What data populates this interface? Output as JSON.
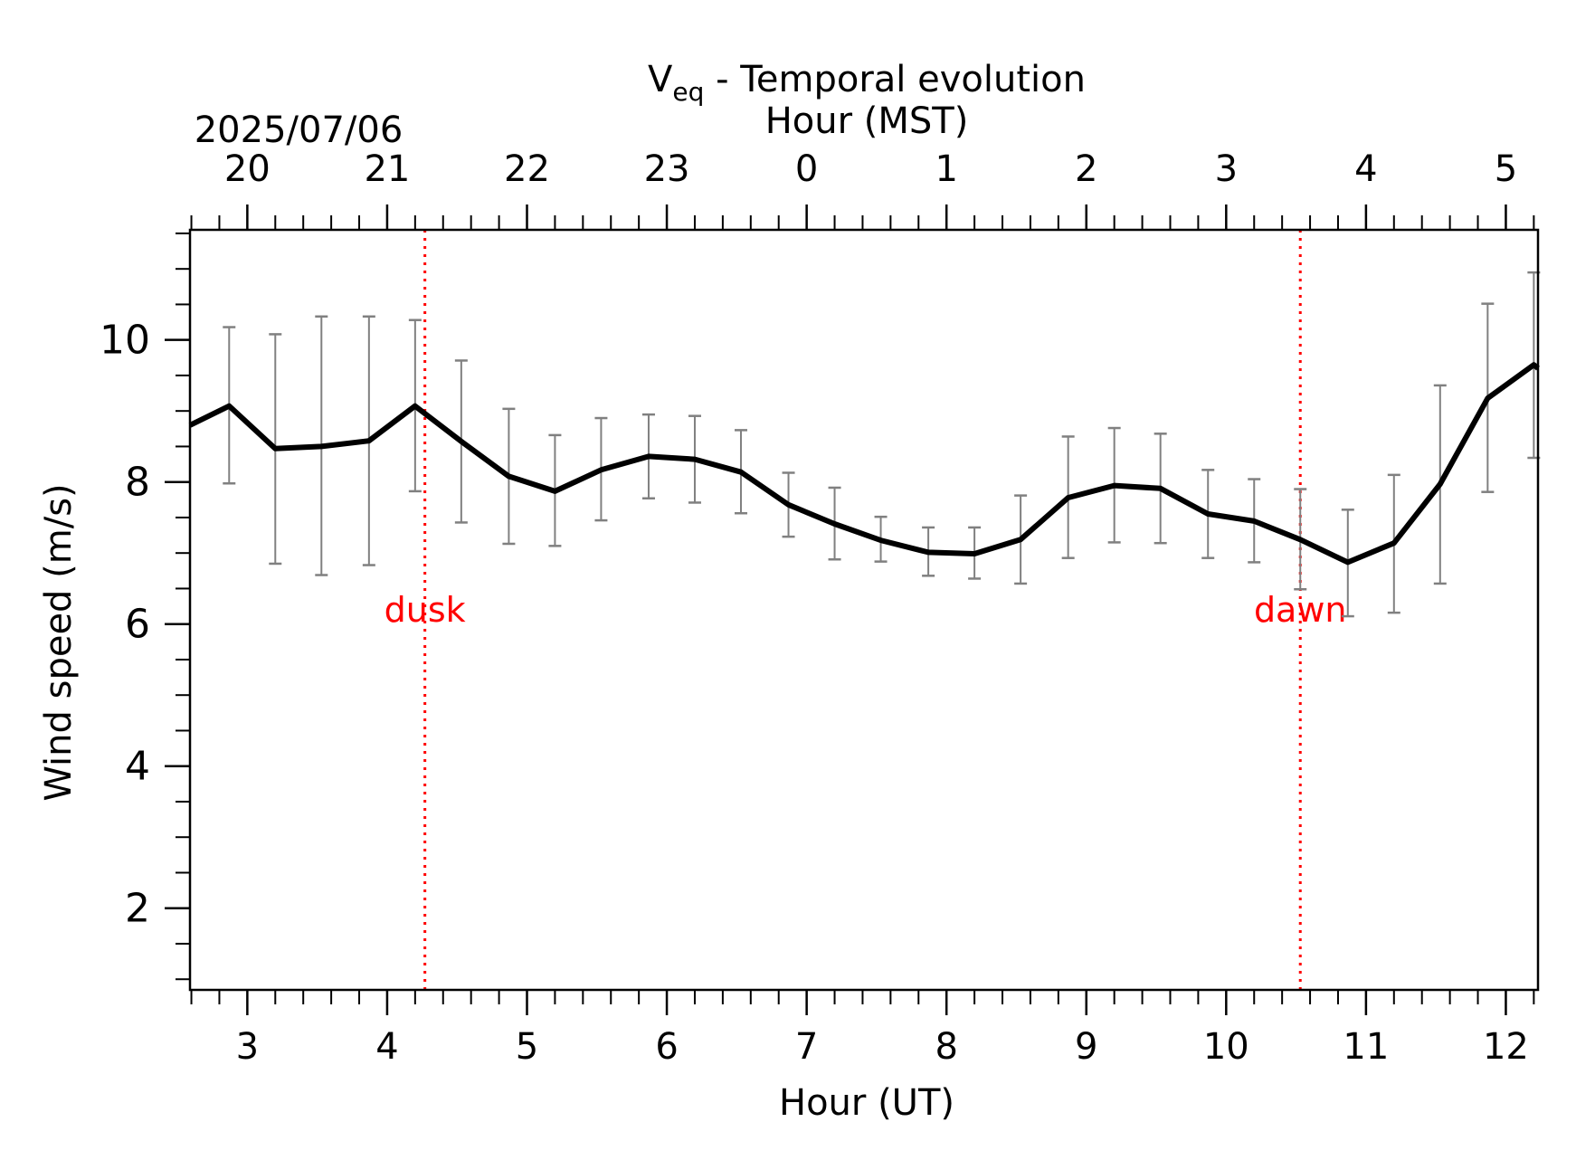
{
  "chart_data": {
    "type": "line",
    "title": "V",
    "title_subscript": "eq",
    "title_suffix": " - Temporal evolution",
    "top_axis": {
      "label": "Hour (MST)",
      "date": "2025/07/06",
      "ticks": [
        {
          "ut": 3,
          "label": "20"
        },
        {
          "ut": 4,
          "label": "21"
        },
        {
          "ut": 5,
          "label": "22"
        },
        {
          "ut": 6,
          "label": "23"
        },
        {
          "ut": 7,
          "label": "0"
        },
        {
          "ut": 8,
          "label": "1"
        },
        {
          "ut": 9,
          "label": "2"
        },
        {
          "ut": 10,
          "label": "3"
        },
        {
          "ut": 11,
          "label": "4"
        },
        {
          "ut": 12,
          "label": "5"
        }
      ]
    },
    "xlabel": "Hour (UT)",
    "ylabel": "Wind speed (m/s)",
    "xlim": [
      2.59,
      12.23
    ],
    "ylim": [
      0.85,
      11.55
    ],
    "x_ticks": [
      3,
      4,
      5,
      6,
      7,
      8,
      9,
      10,
      11,
      12
    ],
    "y_ticks": [
      2,
      4,
      6,
      8,
      10
    ],
    "series": [
      {
        "color": "#000000",
        "error_color": "#808080",
        "points": [
          {
            "x": 2.59,
            "y": 8.8,
            "err": null
          },
          {
            "x": 2.87,
            "y": 9.07,
            "lo": 7.98,
            "hi": 10.18
          },
          {
            "x": 3.2,
            "y": 8.47,
            "lo": 6.85,
            "hi": 10.08
          },
          {
            "x": 3.53,
            "y": 8.5,
            "lo": 6.69,
            "hi": 10.33
          },
          {
            "x": 3.87,
            "y": 8.58,
            "lo": 6.83,
            "hi": 10.33
          },
          {
            "x": 4.2,
            "y": 9.07,
            "lo": 7.87,
            "hi": 10.28
          },
          {
            "x": 4.53,
            "y": 8.57,
            "lo": 7.43,
            "hi": 9.71
          },
          {
            "x": 4.87,
            "y": 8.08,
            "lo": 7.13,
            "hi": 9.03
          },
          {
            "x": 5.2,
            "y": 7.87,
            "lo": 7.1,
            "hi": 8.66
          },
          {
            "x": 5.53,
            "y": 8.17,
            "lo": 7.46,
            "hi": 8.9
          },
          {
            "x": 5.87,
            "y": 8.36,
            "lo": 7.77,
            "hi": 8.95
          },
          {
            "x": 6.2,
            "y": 8.32,
            "lo": 7.71,
            "hi": 8.93
          },
          {
            "x": 6.53,
            "y": 8.14,
            "lo": 7.56,
            "hi": 8.73
          },
          {
            "x": 6.87,
            "y": 7.68,
            "lo": 7.23,
            "hi": 8.13
          },
          {
            "x": 7.2,
            "y": 7.41,
            "lo": 6.91,
            "hi": 7.92
          },
          {
            "x": 7.53,
            "y": 7.18,
            "lo": 6.88,
            "hi": 7.51
          },
          {
            "x": 7.87,
            "y": 7.01,
            "lo": 6.68,
            "hi": 7.36
          },
          {
            "x": 8.2,
            "y": 6.99,
            "lo": 6.64,
            "hi": 7.36
          },
          {
            "x": 8.53,
            "y": 7.19,
            "lo": 6.57,
            "hi": 7.81
          },
          {
            "x": 8.87,
            "y": 7.78,
            "lo": 6.93,
            "hi": 8.64
          },
          {
            "x": 9.2,
            "y": 7.95,
            "lo": 7.15,
            "hi": 8.76
          },
          {
            "x": 9.53,
            "y": 7.91,
            "lo": 7.14,
            "hi": 8.68
          },
          {
            "x": 9.87,
            "y": 7.55,
            "lo": 6.93,
            "hi": 8.17
          },
          {
            "x": 10.2,
            "y": 7.45,
            "lo": 6.87,
            "hi": 8.04
          },
          {
            "x": 10.53,
            "y": 7.19,
            "lo": 6.49,
            "hi": 7.9
          },
          {
            "x": 10.87,
            "y": 6.87,
            "lo": 6.11,
            "hi": 7.61
          },
          {
            "x": 11.2,
            "y": 7.14,
            "lo": 6.16,
            "hi": 8.1
          },
          {
            "x": 11.53,
            "y": 7.97,
            "lo": 6.57,
            "hi": 9.36
          },
          {
            "x": 11.87,
            "y": 9.18,
            "lo": 7.86,
            "hi": 10.51
          },
          {
            "x": 12.2,
            "y": 9.65,
            "lo": 8.34,
            "hi": 10.95
          },
          {
            "x": 12.23,
            "y": 9.6,
            "err": null
          }
        ]
      }
    ],
    "annotations": [
      {
        "text": "dusk",
        "x": 4.27,
        "color": "#ff0000"
      },
      {
        "text": "dawn",
        "x": 10.53,
        "color": "#ff0000"
      }
    ],
    "grid": false
  }
}
